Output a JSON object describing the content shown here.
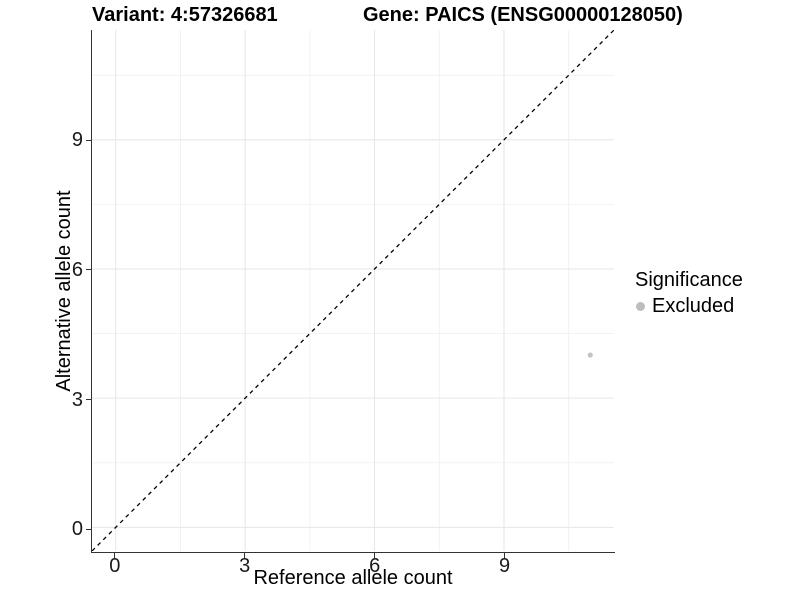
{
  "title": {
    "variant": "Variant: 4:57326681",
    "gene": "Gene: PAICS (ENSG00000128050)"
  },
  "x_axis": {
    "label": "Reference allele count"
  },
  "y_axis": {
    "label": "Alternative allele count"
  },
  "legend": {
    "title": "Significance",
    "items": [
      {
        "label": "Excluded",
        "color": "#BDBDBD"
      }
    ]
  },
  "colors": {
    "grid_major": "#E6E6E6",
    "grid_minor": "#F2F2F2",
    "axis_line": "#333333",
    "reference_line": "#000000",
    "point": "#C3C3C3",
    "text": "#000000"
  },
  "chart_data": {
    "type": "scatter",
    "title": "Variant: 4:57326681   Gene: PAICS (ENSG00000128050)",
    "xlabel": "Reference allele count",
    "ylabel": "Alternative allele count",
    "xlim": [
      -0.55,
      11.55
    ],
    "ylim": [
      -0.55,
      11.55
    ],
    "x_breaks": [
      0,
      3,
      6,
      9
    ],
    "y_breaks": [
      0,
      3,
      6,
      9
    ],
    "x_minor_breaks": [
      1.5,
      4.5,
      7.5,
      10.5
    ],
    "y_minor_breaks": [
      1.5,
      4.5,
      7.5,
      10.5
    ],
    "grid": true,
    "legend_position": "right",
    "series": [
      {
        "name": "Excluded",
        "color": "#C3C3C3",
        "points": [
          {
            "x": 11,
            "y": 4
          }
        ]
      }
    ],
    "reference_line": {
      "type": "identity y=x",
      "linetype": "dashed",
      "color": "#000000"
    }
  }
}
